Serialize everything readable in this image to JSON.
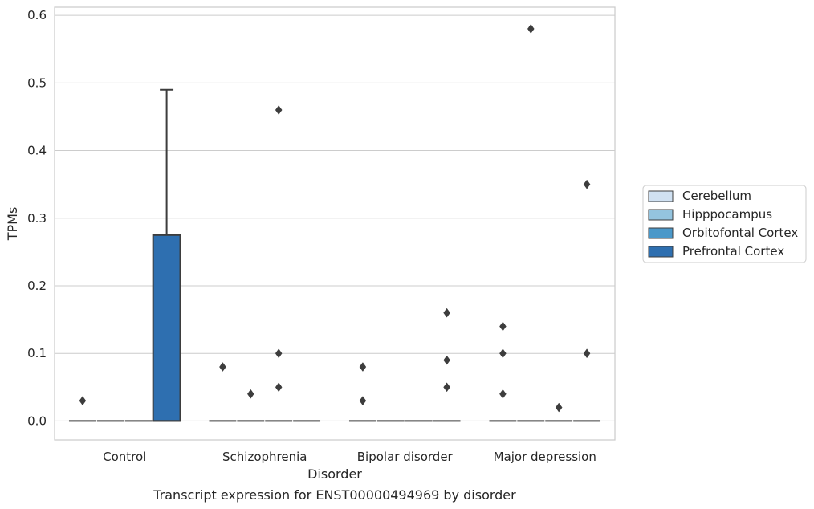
{
  "chart_data": {
    "type": "box",
    "categories": [
      "Control",
      "Schizophrenia",
      "Bipolar disorder",
      "Major depression"
    ],
    "xlabel": "Disorder",
    "ylabel": "TPMs",
    "caption": "Transcript expression for ENST00000494969 by disorder",
    "ylim": [
      -0.028,
      0.612
    ],
    "yticks": [
      "0.0",
      "0.1",
      "0.2",
      "0.3",
      "0.4",
      "0.5",
      "0.6"
    ],
    "grid": "horizontal",
    "legend_position": "right",
    "series": [
      {
        "name": "Cerebellum",
        "color": "#d0e1f2",
        "boxes": [
          {
            "category": "Control",
            "q1": 0,
            "median": 0,
            "q3": 0,
            "whisker_low": 0,
            "whisker_high": 0,
            "outliers": [
              0.03
            ]
          },
          {
            "category": "Schizophrenia",
            "q1": 0,
            "median": 0,
            "q3": 0,
            "whisker_low": 0,
            "whisker_high": 0,
            "outliers": [
              0.08
            ]
          },
          {
            "category": "Bipolar disorder",
            "q1": 0,
            "median": 0,
            "q3": 0,
            "whisker_low": 0,
            "whisker_high": 0,
            "outliers": [
              0.08,
              0.03
            ]
          },
          {
            "category": "Major depression",
            "q1": 0,
            "median": 0,
            "q3": 0,
            "whisker_low": 0,
            "whisker_high": 0,
            "outliers": [
              0.14,
              0.1,
              0.04
            ]
          }
        ]
      },
      {
        "name": "Hipppocampus",
        "color": "#94c4df",
        "boxes": [
          {
            "category": "Control",
            "q1": 0,
            "median": 0,
            "q3": 0,
            "whisker_low": 0,
            "whisker_high": 0,
            "outliers": []
          },
          {
            "category": "Schizophrenia",
            "q1": 0,
            "median": 0,
            "q3": 0,
            "whisker_low": 0,
            "whisker_high": 0,
            "outliers": [
              0.04
            ]
          },
          {
            "category": "Bipolar disorder",
            "q1": 0,
            "median": 0,
            "q3": 0,
            "whisker_low": 0,
            "whisker_high": 0,
            "outliers": []
          },
          {
            "category": "Major depression",
            "q1": 0,
            "median": 0,
            "q3": 0,
            "whisker_low": 0,
            "whisker_high": 0,
            "outliers": [
              0.58
            ]
          }
        ]
      },
      {
        "name": "Orbitofontal Cortex",
        "color": "#4a98c9",
        "boxes": [
          {
            "category": "Control",
            "q1": 0,
            "median": 0,
            "q3": 0,
            "whisker_low": 0,
            "whisker_high": 0,
            "outliers": []
          },
          {
            "category": "Schizophrenia",
            "q1": 0,
            "median": 0,
            "q3": 0,
            "whisker_low": 0,
            "whisker_high": 0,
            "outliers": [
              0.46,
              0.1,
              0.05
            ]
          },
          {
            "category": "Bipolar disorder",
            "q1": 0,
            "median": 0,
            "q3": 0,
            "whisker_low": 0,
            "whisker_high": 0,
            "outliers": []
          },
          {
            "category": "Major depression",
            "q1": 0,
            "median": 0,
            "q3": 0,
            "whisker_low": 0,
            "whisker_high": 0,
            "outliers": [
              0.02
            ]
          }
        ]
      },
      {
        "name": "Prefrontal Cortex",
        "color": "#2e6fb0",
        "boxes": [
          {
            "category": "Control",
            "q1": 0,
            "median": 0,
            "q3": 0.275,
            "whisker_low": 0,
            "whisker_high": 0.49,
            "outliers": []
          },
          {
            "category": "Schizophrenia",
            "q1": 0,
            "median": 0,
            "q3": 0,
            "whisker_low": 0,
            "whisker_high": 0,
            "outliers": []
          },
          {
            "category": "Bipolar disorder",
            "q1": 0,
            "median": 0,
            "q3": 0,
            "whisker_low": 0,
            "whisker_high": 0,
            "outliers": [
              0.16,
              0.09,
              0.05
            ]
          },
          {
            "category": "Major depression",
            "q1": 0,
            "median": 0,
            "q3": 0,
            "whisker_low": 0,
            "whisker_high": 0,
            "outliers": [
              0.35,
              0.1
            ]
          }
        ]
      }
    ]
  }
}
